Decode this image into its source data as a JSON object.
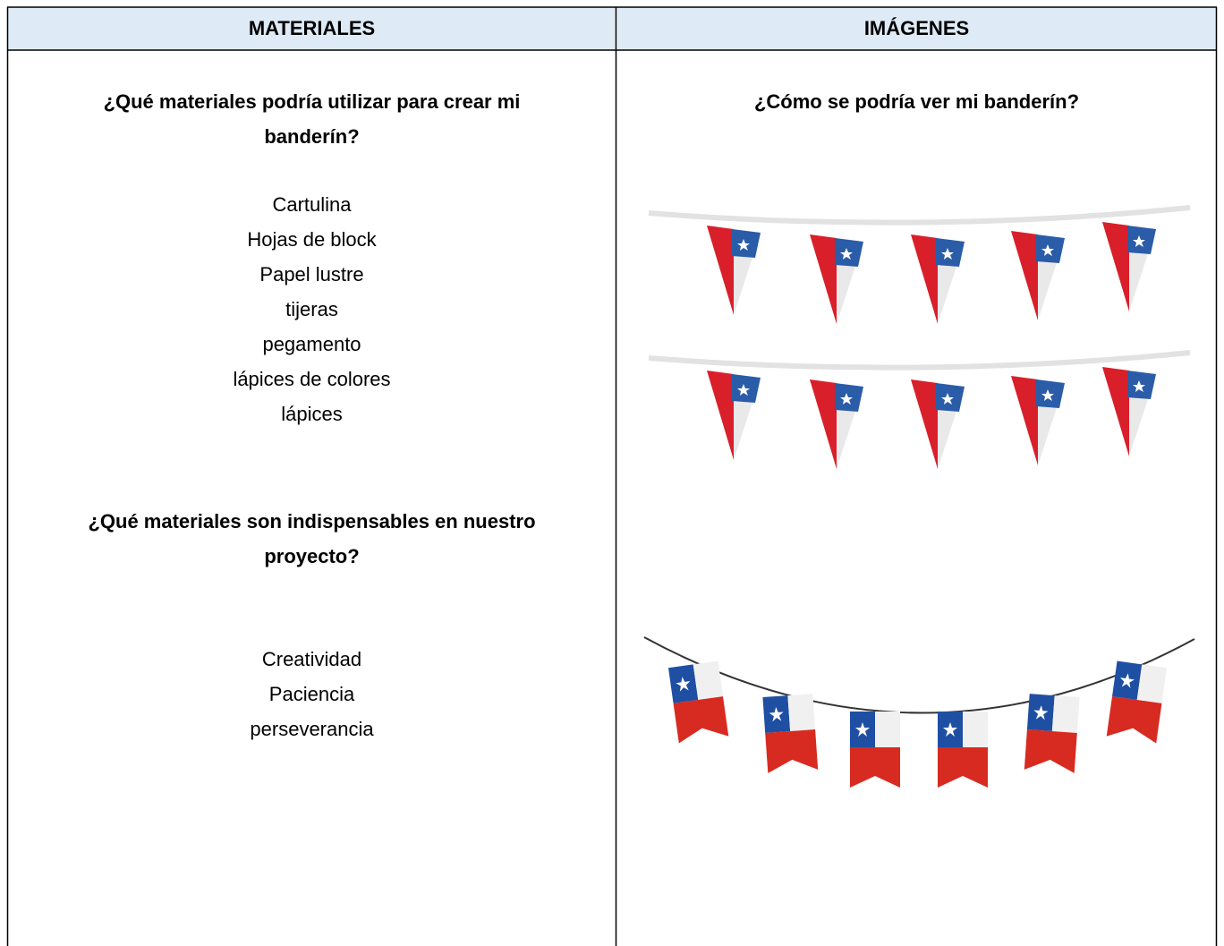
{
  "table": {
    "headers": [
      "MATERIALES",
      "IMÁGENES"
    ],
    "left": {
      "question_1": [
        "¿Qué materiales podría utilizar para crear mi",
        "banderín?"
      ],
      "list_1": [
        "Cartulina",
        "Hojas de block",
        "Papel lustre",
        "tijeras",
        "pegamento",
        "lápices de colores",
        "lápices"
      ],
      "question_2": [
        "¿Qué materiales son indispensables en nuestro",
        "proyecto?"
      ],
      "list_2": [
        "Creatividad",
        "Paciencia",
        "perseverancia"
      ]
    },
    "right": {
      "question": "¿Cómo se podría ver mi banderín?"
    }
  }
}
